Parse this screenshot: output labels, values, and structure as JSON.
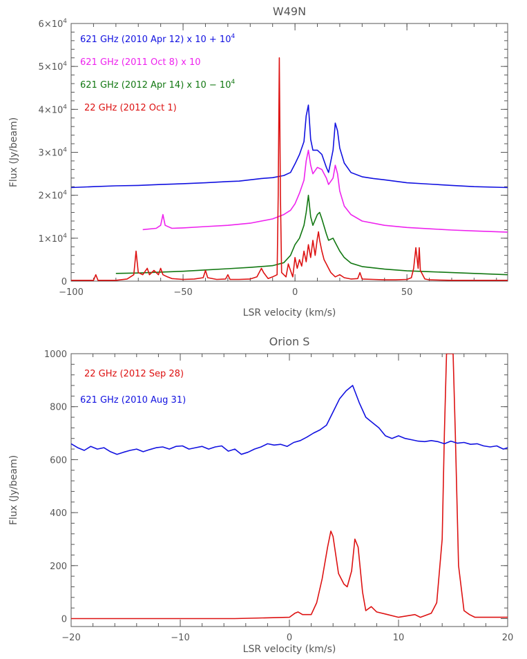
{
  "chart_data": [
    {
      "type": "line",
      "title": "W49N",
      "xlabel": "LSR velocity (km/s)",
      "ylabel": "Flux (Jy/beam)",
      "xlim": [
        -100,
        95
      ],
      "ylim": [
        0,
        60000
      ],
      "x_ticks": [
        -100,
        -50,
        0,
        50
      ],
      "x_tick_labels": [
        "−100",
        "−50",
        "0",
        "50"
      ],
      "y_ticks": [
        0,
        10000,
        20000,
        30000,
        40000,
        50000,
        60000
      ],
      "y_tick_labels": [
        {
          "base": "0",
          "exp": ""
        },
        {
          "base": "1×10",
          "exp": "4"
        },
        {
          "base": "2×10",
          "exp": "4"
        },
        {
          "base": "3×10",
          "exp": "4"
        },
        {
          "base": "4×10",
          "exp": "4"
        },
        {
          "base": "5×10",
          "exp": "4"
        },
        {
          "base": "6×10",
          "exp": "4"
        }
      ],
      "series": [
        {
          "name": "621 GHz (2010 Apr 12) x 10 + 10",
          "name_sup": "4",
          "color": "#1010e0",
          "x": [
            -100,
            -90,
            -80,
            -70,
            -60,
            -50,
            -40,
            -30,
            -25,
            -20,
            -15,
            -10,
            -5,
            -2,
            0,
            2,
            4,
            5,
            6,
            7,
            8,
            10,
            12,
            14,
            15,
            17,
            18,
            19,
            20,
            22,
            25,
            30,
            35,
            40,
            50,
            60,
            70,
            80,
            95
          ],
          "y": [
            21800,
            22000,
            22200,
            22300,
            22500,
            22700,
            22900,
            23200,
            23300,
            23600,
            23900,
            24100,
            24600,
            25300,
            27300,
            29500,
            32500,
            38500,
            41000,
            33000,
            30500,
            30500,
            29500,
            26500,
            25300,
            30500,
            36800,
            35000,
            31000,
            27500,
            25300,
            24300,
            23900,
            23600,
            22900,
            22600,
            22300,
            22000,
            21800
          ]
        },
        {
          "name": "621 GHz (2011 Oct 8) x 10",
          "name_sup": "",
          "color": "#ee22ee",
          "x": [
            -68,
            -62,
            -60,
            -59,
            -58,
            -55,
            -50,
            -40,
            -30,
            -20,
            -10,
            -5,
            -2,
            0,
            2,
            4,
            5,
            6,
            7,
            8,
            10,
            12,
            14,
            15,
            17,
            18,
            19,
            20,
            22,
            25,
            30,
            40,
            50,
            60,
            70,
            80,
            95
          ],
          "y": [
            12000,
            12300,
            13000,
            15500,
            13000,
            12300,
            12400,
            12700,
            13000,
            13500,
            14500,
            15500,
            16500,
            18000,
            20500,
            23500,
            28000,
            30500,
            27000,
            25000,
            26500,
            26000,
            24000,
            22500,
            24000,
            27000,
            25000,
            21000,
            17500,
            15500,
            14000,
            13000,
            12500,
            12200,
            11900,
            11700,
            11400
          ]
        },
        {
          "name": "621 GHz (2012 Apr 14) x 10 − 10",
          "name_sup": "4",
          "color": "#117711",
          "x": [
            -80,
            -70,
            -60,
            -50,
            -40,
            -30,
            -20,
            -10,
            -5,
            -2,
            0,
            2,
            4,
            5,
            6,
            7,
            8,
            10,
            11,
            12,
            14,
            15,
            17,
            18,
            20,
            22,
            25,
            30,
            40,
            50,
            60,
            70,
            80,
            95
          ],
          "y": [
            1800,
            1900,
            2100,
            2300,
            2600,
            2900,
            3200,
            3600,
            4300,
            6000,
            8500,
            10000,
            13000,
            16000,
            20000,
            15000,
            13000,
            15500,
            16000,
            14500,
            11000,
            9500,
            10000,
            9000,
            7000,
            5500,
            4200,
            3400,
            2800,
            2400,
            2200,
            2000,
            1800,
            1500
          ]
        },
        {
          "name": "22 GHz (2012 Oct 1)",
          "name_sup": "",
          "color": "#dd1111",
          "x": [
            -100,
            -90,
            -89,
            -88,
            -80,
            -75,
            -72,
            -71,
            -70,
            -68,
            -66,
            -65,
            -63,
            -61,
            -60,
            -59,
            -57,
            -55,
            -50,
            -45,
            -41,
            -40,
            -39,
            -35,
            -31,
            -30,
            -29,
            -25,
            -20,
            -17,
            -15,
            -14,
            -12,
            -10,
            -8,
            -7.5,
            -7,
            -6.5,
            -6,
            -4,
            -3,
            -2,
            -1,
            0,
            1,
            2,
            3,
            4,
            5,
            6,
            7,
            8,
            9,
            10,
            10.5,
            11,
            12,
            13,
            14,
            15,
            16,
            18,
            20,
            22,
            25,
            28,
            29,
            30,
            35,
            40,
            45,
            50,
            52,
            53,
            54,
            55,
            55.5,
            56,
            58,
            60,
            70,
            80,
            95
          ],
          "y": [
            200,
            200,
            1500,
            200,
            200,
            500,
            1500,
            7000,
            2000,
            1500,
            3000,
            1500,
            2500,
            1500,
            3000,
            1500,
            1000,
            600,
            400,
            500,
            800,
            2500,
            800,
            400,
            500,
            1500,
            400,
            400,
            500,
            1000,
            3000,
            2000,
            600,
            1000,
            1500,
            20000,
            52000,
            20000,
            2000,
            1000,
            4000,
            2500,
            1000,
            5500,
            3000,
            5000,
            3500,
            7000,
            4500,
            8500,
            5500,
            9500,
            6000,
            10000,
            11500,
            9500,
            7000,
            5000,
            4000,
            3000,
            2000,
            1000,
            1500,
            800,
            500,
            600,
            2000,
            500,
            400,
            300,
            300,
            400,
            800,
            3000,
            7800,
            3000,
            7800,
            2500,
            500,
            300,
            200,
            200,
            200
          ]
        }
      ],
      "legend_position": "top-left",
      "grid": false
    },
    {
      "type": "line",
      "title": "Orion S",
      "xlabel": "LSR velocity (km/s)",
      "ylabel": "Flux (Jy/beam)",
      "xlim": [
        -20,
        20
      ],
      "ylim": [
        -30,
        1000
      ],
      "x_ticks": [
        -20,
        -10,
        0,
        10,
        20
      ],
      "x_tick_labels": [
        "−20",
        "−10",
        "0",
        "10",
        "20"
      ],
      "y_ticks": [
        0,
        200,
        400,
        600,
        800,
        1000
      ],
      "y_tick_labels": [
        {
          "base": "0",
          "exp": ""
        },
        {
          "base": "200",
          "exp": ""
        },
        {
          "base": "400",
          "exp": ""
        },
        {
          "base": "600",
          "exp": ""
        },
        {
          "base": "800",
          "exp": ""
        },
        {
          "base": "1000",
          "exp": ""
        }
      ],
      "series": [
        {
          "name": "22 GHz (2012 Sep 28)",
          "name_sup": "",
          "color": "#dd1111",
          "x": [
            -20,
            -5,
            0,
            0.5,
            0.8,
            1.2,
            2,
            2.5,
            3,
            3.5,
            3.8,
            4,
            4.5,
            5,
            5.3,
            5.7,
            6,
            6.3,
            6.7,
            7,
            7.5,
            8,
            9,
            10,
            11.5,
            12,
            13,
            13.5,
            14,
            14.2,
            14.4,
            14.6,
            14.8,
            15,
            15.2,
            15.5,
            16,
            16.5,
            17,
            18,
            20
          ],
          "y": [
            0,
            0,
            5,
            20,
            25,
            15,
            15,
            60,
            150,
            270,
            330,
            310,
            170,
            130,
            120,
            180,
            300,
            270,
            100,
            30,
            45,
            25,
            15,
            5,
            15,
            5,
            20,
            60,
            300,
            700,
            1000,
            1000,
            1000,
            1000,
            700,
            200,
            30,
            15,
            5,
            5,
            5
          ]
        },
        {
          "name": "621 GHz (2010 Aug 31)",
          "name_sup": "",
          "color": "#1010e0",
          "x": [
            -20,
            -19.4,
            -18.8,
            -18.2,
            -17.6,
            -17,
            -16.4,
            -15.8,
            -15.2,
            -14.6,
            -14,
            -13.4,
            -12.8,
            -12.2,
            -11.6,
            -11,
            -10.4,
            -9.8,
            -9.2,
            -8.6,
            -8,
            -7.4,
            -6.8,
            -6.2,
            -5.6,
            -5,
            -4.4,
            -3.8,
            -3.2,
            -2.6,
            -2,
            -1.4,
            -0.8,
            -0.2,
            0.4,
            1,
            1.6,
            2.2,
            2.8,
            3.4,
            4,
            4.6,
            5.2,
            5.8,
            6.4,
            7,
            7.6,
            8.2,
            8.8,
            9.4,
            10,
            10.6,
            11.2,
            11.8,
            12.4,
            13,
            13.6,
            14.2,
            14.8,
            15.4,
            16,
            16.6,
            17.2,
            17.8,
            18.4,
            19,
            19.6,
            20
          ],
          "y": [
            660,
            645,
            635,
            650,
            640,
            645,
            630,
            620,
            628,
            635,
            640,
            630,
            638,
            645,
            648,
            640,
            650,
            652,
            640,
            645,
            650,
            640,
            648,
            652,
            632,
            640,
            620,
            628,
            640,
            648,
            660,
            655,
            658,
            650,
            665,
            672,
            685,
            700,
            712,
            730,
            780,
            830,
            860,
            880,
            815,
            760,
            740,
            720,
            690,
            680,
            690,
            680,
            675,
            670,
            668,
            672,
            668,
            660,
            670,
            662,
            665,
            658,
            660,
            652,
            648,
            652,
            640,
            645
          ]
        }
      ],
      "legend_position": "top-left",
      "grid": false
    }
  ]
}
